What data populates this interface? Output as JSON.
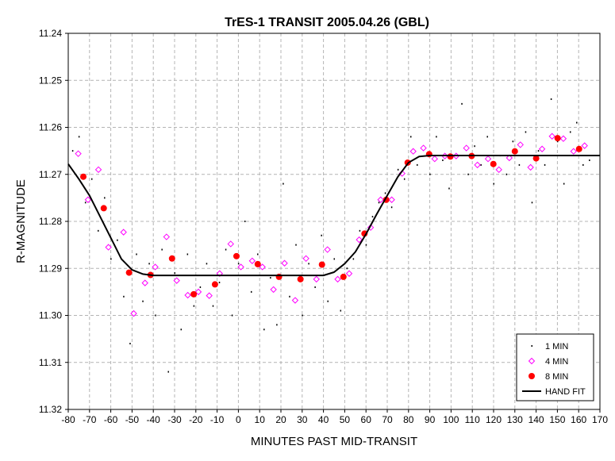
{
  "chart_data": {
    "type": "scatter",
    "title": "TrES-1 TRANSIT 2005.04.26 (GBL)",
    "xlabel": "MINUTES PAST MID-TRANSIT",
    "ylabel": "R-MAGNITUDE",
    "xlim": [
      -80,
      170
    ],
    "ylim": [
      11.24,
      11.32
    ],
    "y_inverted": true,
    "x_ticks": [
      -80,
      -70,
      -60,
      -50,
      -40,
      -30,
      -20,
      -10,
      0,
      10,
      20,
      30,
      40,
      50,
      60,
      70,
      80,
      90,
      100,
      110,
      120,
      130,
      140,
      150,
      160,
      170
    ],
    "y_ticks": [
      "11.24",
      "11.25",
      "11.26",
      "11.27",
      "11.28",
      "11.29",
      "11.30",
      "11.31",
      "11.32"
    ],
    "grid": true,
    "legend_position": "bottom-right",
    "series": [
      {
        "name": "1 MIN",
        "marker": "dot",
        "color": "#000000",
        "x": [
          -78,
          -75,
          -72,
          -69,
          -66,
          -63,
          -60,
          -57,
          -54,
          -51,
          -48,
          -45,
          -42,
          -39,
          -36,
          -33,
          -30,
          -27,
          -24,
          -21,
          -18,
          -15,
          -12,
          -9,
          -6,
          -3,
          0,
          3,
          6,
          9,
          12,
          15,
          18,
          21,
          24,
          27,
          30,
          33,
          36,
          39,
          42,
          45,
          48,
          51,
          54,
          57,
          60,
          63,
          66,
          69,
          72,
          75,
          78,
          81,
          84,
          87,
          90,
          93,
          96,
          99,
          102,
          105,
          108,
          111,
          114,
          117,
          120,
          123,
          126,
          129,
          132,
          135,
          138,
          141,
          144,
          147,
          150,
          153,
          156,
          159,
          162,
          165
        ],
        "y": [
          11.265,
          11.262,
          11.276,
          11.271,
          11.282,
          11.275,
          11.288,
          11.284,
          11.296,
          11.306,
          11.287,
          11.297,
          11.289,
          11.3,
          11.286,
          11.312,
          11.291,
          11.303,
          11.287,
          11.298,
          11.294,
          11.289,
          11.298,
          11.293,
          11.286,
          11.3,
          11.289,
          11.28,
          11.295,
          11.287,
          11.303,
          11.292,
          11.302,
          11.272,
          11.296,
          11.285,
          11.3,
          11.289,
          11.294,
          11.283,
          11.297,
          11.288,
          11.299,
          11.29,
          11.288,
          11.282,
          11.285,
          11.279,
          11.276,
          11.274,
          11.277,
          11.269,
          11.271,
          11.262,
          11.268,
          11.264,
          11.27,
          11.262,
          11.267,
          11.273,
          11.266,
          11.255,
          11.27,
          11.264,
          11.268,
          11.262,
          11.272,
          11.266,
          11.27,
          11.263,
          11.268,
          11.261,
          11.276,
          11.265,
          11.268,
          11.254,
          11.263,
          11.272,
          11.261,
          11.259,
          11.268,
          11.267
        ]
      },
      {
        "name": "4 MIN",
        "marker": "open-diamond",
        "color": "#ff00ff",
        "x": [
          -75.3,
          -70.7,
          -65.8,
          -61.1,
          -54,
          -49.2,
          -43.9,
          -39.1,
          -33.8,
          -29,
          -23.8,
          -18.8,
          -13.7,
          -8.8,
          -3.6,
          1.2,
          6.5,
          11.3,
          16.5,
          21.7,
          26.7,
          31.8,
          36.7,
          41.9,
          46.7,
          52.1,
          56.8,
          62.2,
          66.9,
          72.1,
          77,
          82.2,
          87,
          92.3,
          97.1,
          102.4,
          107.2,
          112.4,
          117.4,
          122.5,
          127.4,
          132.6,
          137.4,
          142.8,
          147.5,
          152.8,
          157.6,
          162.8
        ],
        "y": [
          11.2656,
          11.2754,
          11.269,
          11.2855,
          11.2823,
          11.2996,
          11.2931,
          11.2897,
          11.2833,
          11.2926,
          11.2957,
          11.295,
          11.2958,
          11.2911,
          11.2848,
          11.2897,
          11.2884,
          11.2897,
          11.2945,
          11.2889,
          11.2968,
          11.2879,
          11.2923,
          11.286,
          11.2923,
          11.2911,
          11.2839,
          11.2813,
          11.2754,
          11.2754,
          11.2698,
          11.2651,
          11.2644,
          11.2667,
          11.2661,
          11.2661,
          11.2644,
          11.268,
          11.2667,
          11.269,
          11.2665,
          11.2637,
          11.2685,
          11.2646,
          11.2619,
          11.2624,
          11.2651,
          11.2639
        ]
      },
      {
        "name": "8 MIN",
        "marker": "filled-circle",
        "color": "#ff0000",
        "x": [
          -72.9,
          -63.3,
          -51.4,
          -41.3,
          -31.2,
          -21,
          -11,
          -0.9,
          9.1,
          19.1,
          29.2,
          39.3,
          49.4,
          59.3,
          69.5,
          79.6,
          89.7,
          99.7,
          109.7,
          119.9,
          130,
          140,
          150.1,
          160.2
        ],
        "y": [
          11.2705,
          11.2772,
          11.2909,
          11.2914,
          11.2879,
          11.2955,
          11.2934,
          11.2874,
          11.2891,
          11.2918,
          11.2923,
          11.2892,
          11.2918,
          11.2826,
          11.2754,
          11.2675,
          11.2657,
          11.2662,
          11.2661,
          11.2678,
          11.2651,
          11.2666,
          11.2623,
          11.2646
        ]
      },
      {
        "name": "HAND FIT",
        "marker": "line",
        "color": "#000000",
        "x": [
          -80,
          -75,
          -70,
          -65,
          -60,
          -55,
          -50,
          -45,
          -40,
          40,
          45,
          50,
          55,
          60,
          65,
          70,
          75,
          80,
          85,
          90,
          170
        ],
        "y": [
          11.2678,
          11.271,
          11.2745,
          11.279,
          11.2835,
          11.288,
          11.2903,
          11.2912,
          11.2915,
          11.2915,
          11.2908,
          11.289,
          11.2865,
          11.2827,
          11.2785,
          11.2745,
          11.2705,
          11.2675,
          11.2662,
          11.266,
          11.266
        ]
      }
    ]
  }
}
